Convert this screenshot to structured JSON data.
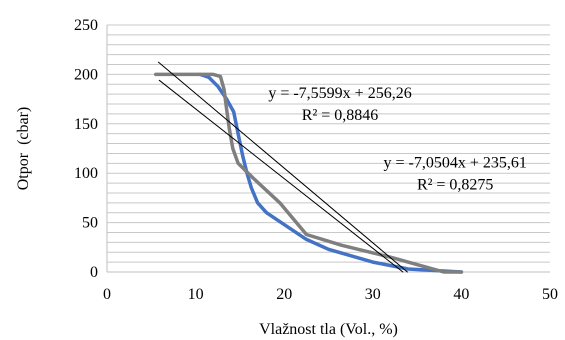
{
  "chart_data": {
    "type": "line",
    "title": "",
    "xlabel": "Vlažnost tla (Vol., %)",
    "ylabel": "Otpor  (cbar)",
    "xlim": [
      0,
      50
    ],
    "ylim": [
      0,
      250
    ],
    "x_ticks": [
      0,
      10,
      20,
      30,
      40,
      50
    ],
    "y_ticks": [
      0,
      50,
      100,
      150,
      200,
      250
    ],
    "x_tick_labels": [
      "0",
      "10",
      "20",
      "30",
      "40",
      "50"
    ],
    "y_tick_labels": [
      "0",
      "50",
      "100",
      "150",
      "200",
      "250"
    ],
    "grid": {
      "horizontal": true,
      "vertical": false,
      "minor_step": 10
    },
    "legend": "none",
    "series": [
      {
        "color": "#4472C4",
        "points": [
          [
            10.5,
            200
          ],
          [
            11.5,
            197
          ],
          [
            12.5,
            188
          ],
          [
            13.5,
            175
          ],
          [
            14.3,
            162
          ],
          [
            14.8,
            140
          ],
          [
            15.3,
            118
          ],
          [
            15.8,
            100
          ],
          [
            16.3,
            85
          ],
          [
            17.0,
            70
          ],
          [
            18.0,
            60
          ],
          [
            20.0,
            48
          ],
          [
            22.5,
            33
          ],
          [
            25.0,
            23
          ],
          [
            30.0,
            10
          ],
          [
            34.0,
            3
          ],
          [
            38.0,
            1
          ],
          [
            40.0,
            0
          ]
        ]
      },
      {
        "color": "#7F7F7F",
        "points": [
          [
            5.5,
            200
          ],
          [
            12.0,
            200
          ],
          [
            12.8,
            198
          ],
          [
            13.2,
            185
          ],
          [
            13.5,
            165
          ],
          [
            13.8,
            145
          ],
          [
            14.2,
            125
          ],
          [
            14.8,
            110
          ],
          [
            16.5,
            95
          ],
          [
            19.5,
            70
          ],
          [
            22.5,
            38
          ],
          [
            26.5,
            27
          ],
          [
            32.0,
            15
          ],
          [
            36.0,
            5
          ],
          [
            38.0,
            0
          ],
          [
            40.0,
            0
          ]
        ]
      },
      {
        "color": "#000000",
        "trendline": true,
        "points": [
          [
            5.8,
            212.4
          ],
          [
            33.9,
            0
          ]
        ]
      },
      {
        "color": "#000000",
        "trendline": true,
        "points": [
          [
            5.9,
            194
          ],
          [
            33.4,
            0
          ]
        ]
      }
    ],
    "annotations": [
      {
        "lines": [
          "y = -7,5599x + 256,26",
          "R² = 0,8846"
        ],
        "x": 26.3,
        "y": 176,
        "align": "center"
      },
      {
        "lines": [
          "y = -7,0504x + 235,61",
          "R² = 0,8275"
        ],
        "x": 39.3,
        "y": 106,
        "align": "center"
      }
    ]
  }
}
